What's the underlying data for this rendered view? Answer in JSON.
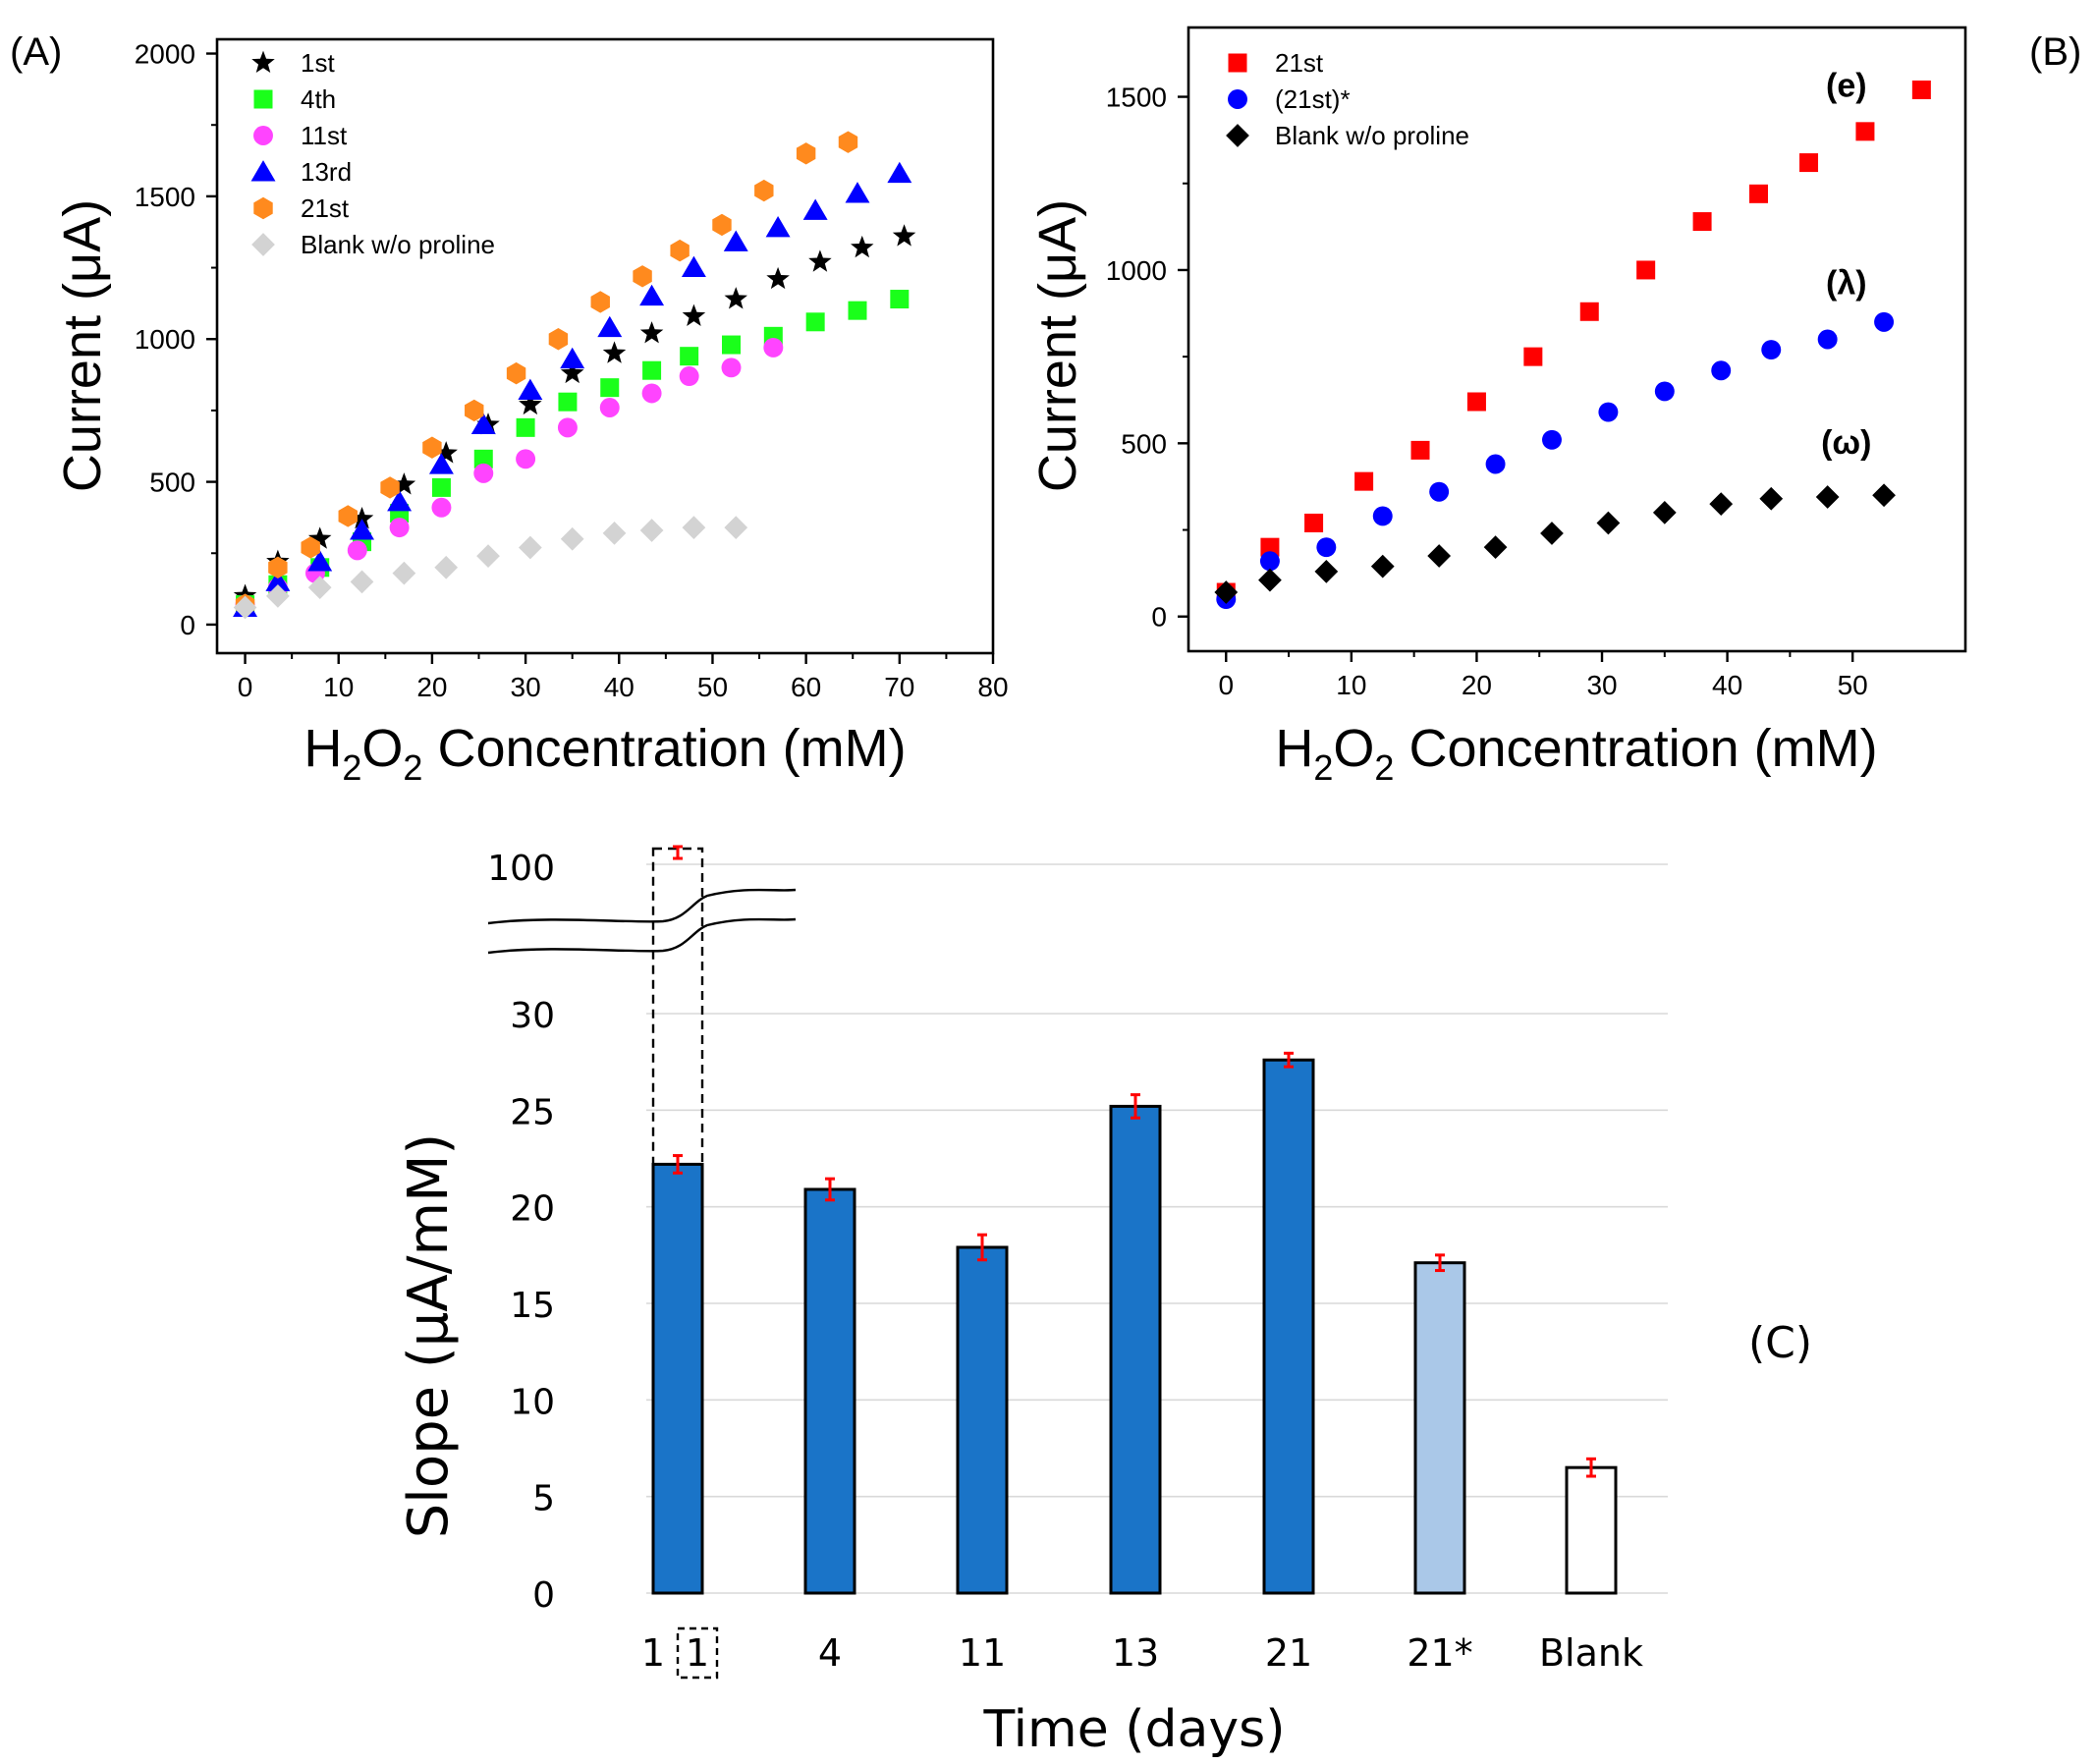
{
  "chart_data": [
    {
      "id": "A",
      "panel_label": "(A)",
      "type": "scatter",
      "xlabel_main": "H",
      "xlabel_sub1": "2",
      "xlabel_mid": "O",
      "xlabel_sub2": "2",
      "xlabel_rest": " Concentration (mM)",
      "ylabel": "Current (μA)",
      "xlim": [
        -3,
        80
      ],
      "ylim": [
        -100,
        2050
      ],
      "xticks": [
        0,
        10,
        20,
        30,
        40,
        50,
        60,
        70,
        80
      ],
      "yticks": [
        0,
        500,
        1000,
        1500,
        2000
      ],
      "legend_position": "top-left",
      "series": [
        {
          "name": "1st",
          "marker": "star",
          "color": "#000000",
          "x": [
            0,
            3.5,
            8,
            12.5,
            17,
            21.5,
            26,
            30.5,
            35,
            39.5,
            43.5,
            48,
            52.5,
            57,
            61.5,
            66,
            70.5
          ],
          "y": [
            100,
            220,
            300,
            370,
            490,
            600,
            700,
            770,
            880,
            950,
            1020,
            1080,
            1140,
            1210,
            1270,
            1320,
            1360
          ]
        },
        {
          "name": "4th",
          "marker": "square",
          "color": "#1aff1a",
          "x": [
            0,
            3.5,
            8,
            12.5,
            16.5,
            21,
            25.5,
            30,
            34.5,
            39,
            43.5,
            47.5,
            52,
            56.5,
            61,
            65.5,
            70
          ],
          "y": [
            70,
            140,
            200,
            290,
            390,
            480,
            580,
            690,
            780,
            830,
            890,
            940,
            980,
            1010,
            1060,
            1100,
            1140
          ]
        },
        {
          "name": "11st",
          "marker": "circle",
          "color": "#ff44ff",
          "x": [
            0,
            3.5,
            7.5,
            12,
            16.5,
            21,
            25.5,
            30,
            34.5,
            39,
            43.5,
            47.5,
            52,
            56.5
          ],
          "y": [
            70,
            130,
            180,
            260,
            340,
            410,
            530,
            580,
            690,
            760,
            810,
            870,
            900,
            970
          ]
        },
        {
          "name": "13rd",
          "marker": "triangle",
          "color": "#0000ff",
          "x": [
            0,
            3.5,
            8,
            12.5,
            16.5,
            21,
            25.5,
            30.5,
            35,
            39,
            43.5,
            48,
            52.5,
            57,
            61,
            65.5,
            70
          ],
          "y": [
            60,
            150,
            220,
            330,
            430,
            560,
            700,
            820,
            930,
            1040,
            1150,
            1250,
            1340,
            1390,
            1450,
            1510,
            1580
          ]
        },
        {
          "name": "21st",
          "marker": "hexagon",
          "color": "#ff8a1e",
          "x": [
            0,
            3.5,
            7,
            11,
            15.5,
            20,
            24.5,
            29,
            33.5,
            38,
            42.5,
            46.5,
            51,
            55.5,
            60,
            64.5
          ],
          "y": [
            70,
            200,
            270,
            380,
            480,
            620,
            750,
            880,
            1000,
            1130,
            1220,
            1310,
            1400,
            1520,
            1650,
            1690
          ]
        },
        {
          "name": "Blank w/o proline",
          "marker": "diamond",
          "color": "#d3d3d3",
          "x": [
            0,
            3.5,
            8,
            12.5,
            17,
            21.5,
            26,
            30.5,
            35,
            39.5,
            43.5,
            48,
            52.5
          ],
          "y": [
            60,
            100,
            130,
            150,
            180,
            200,
            240,
            270,
            300,
            320,
            330,
            340,
            340
          ]
        }
      ]
    },
    {
      "id": "B",
      "panel_label": "(B)",
      "type": "scatter",
      "xlabel_main": "H",
      "xlabel_sub1": "2",
      "xlabel_mid": "O",
      "xlabel_sub2": "2",
      "xlabel_rest": " Concentration (mM)",
      "ylabel": "Current (μA)",
      "xlim": [
        -3,
        59
      ],
      "ylim": [
        -100,
        1700
      ],
      "xticks": [
        0,
        10,
        20,
        30,
        40,
        50
      ],
      "yticks": [
        0,
        500,
        1000,
        1500
      ],
      "legend_position": "top-left",
      "annotations": [
        {
          "text": "(e)",
          "x": 49.5,
          "y": 1500
        },
        {
          "text": "(λ)",
          "x": 49.5,
          "y": 930
        },
        {
          "text": "(ω)",
          "x": 49.5,
          "y": 470
        }
      ],
      "series": [
        {
          "name": "21st",
          "marker": "square",
          "color": "#ff0000",
          "x": [
            0,
            3.5,
            7,
            11,
            15.5,
            20,
            24.5,
            29,
            33.5,
            38,
            42.5,
            46.5,
            51,
            55.5
          ],
          "y": [
            70,
            200,
            270,
            390,
            480,
            620,
            750,
            880,
            1000,
            1140,
            1220,
            1310,
            1400,
            1520
          ]
        },
        {
          "name": "(21st)*",
          "marker": "circle",
          "color": "#0000ff",
          "x": [
            0,
            3.5,
            8,
            12.5,
            17,
            21.5,
            26,
            30.5,
            35,
            39.5,
            43.5,
            48,
            52.5
          ],
          "y": [
            50,
            160,
            200,
            290,
            360,
            440,
            510,
            590,
            650,
            710,
            770,
            800,
            850
          ]
        },
        {
          "name": "Blank w/o proline",
          "marker": "diamond",
          "color": "#000000",
          "x": [
            0,
            3.5,
            8,
            12.5,
            17,
            21.5,
            26,
            30.5,
            35,
            39.5,
            43.5,
            48,
            52.5
          ],
          "y": [
            70,
            105,
            130,
            145,
            175,
            200,
            240,
            270,
            300,
            325,
            340,
            345,
            350
          ]
        }
      ]
    },
    {
      "id": "C",
      "panel_label": "(C)",
      "type": "bar",
      "xlabel": "Time (days)",
      "ylabel": "Slope (μA/mM)",
      "yticks": [
        0,
        5,
        10,
        15,
        20,
        25,
        30
      ],
      "ylim": [
        0,
        30
      ],
      "broken_axis_upper_tick": 100,
      "first_category_inset": "1",
      "categories": [
        "1",
        "4",
        "11",
        "13",
        "21",
        "21*",
        "Blank"
      ],
      "values": [
        22.2,
        20.9,
        17.9,
        25.2,
        27.6,
        17.1,
        6.5
      ],
      "errors": [
        0.45,
        0.55,
        0.65,
        0.6,
        0.35,
        0.4,
        0.45
      ],
      "colors": [
        "#1a74c8",
        "#1a74c8",
        "#1a74c8",
        "#1a74c8",
        "#1a74c8",
        "#aac8e8",
        "#ffffff"
      ],
      "error_bar_color": "#ff0000",
      "dashed_bar_value": 107
    }
  ]
}
